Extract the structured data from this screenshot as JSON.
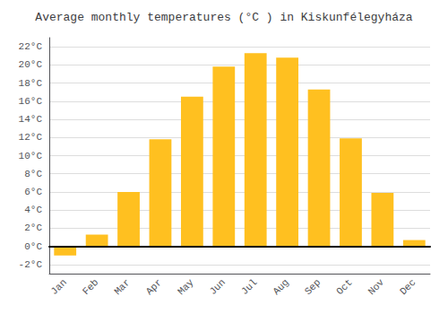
{
  "chart_data": {
    "type": "bar",
    "title": "Average monthly temperatures (°C ) in Kiskunfélegyháza",
    "categories": [
      "Jan",
      "Feb",
      "Mar",
      "Apr",
      "May",
      "Jun",
      "Jul",
      "Aug",
      "Sep",
      "Oct",
      "Nov",
      "Dec"
    ],
    "values": [
      -1.0,
      1.3,
      6.0,
      11.8,
      16.5,
      19.8,
      21.3,
      20.8,
      17.3,
      11.9,
      5.9,
      0.7
    ],
    "color": "#FFC020",
    "ylim": [
      -3,
      23
    ],
    "yticks": [
      {
        "value": -2,
        "label": "-2°C"
      },
      {
        "value": 0,
        "label": "0°C"
      },
      {
        "value": 2,
        "label": "2°C"
      },
      {
        "value": 4,
        "label": "4°C"
      },
      {
        "value": 6,
        "label": "6°C"
      },
      {
        "value": 8,
        "label": "8°C"
      },
      {
        "value": 10,
        "label": "10°C"
      },
      {
        "value": 12,
        "label": "12°C"
      },
      {
        "value": 14,
        "label": "14°C"
      },
      {
        "value": 16,
        "label": "16°C"
      },
      {
        "value": 18,
        "label": "18°C"
      },
      {
        "value": 20,
        "label": "20°C"
      },
      {
        "value": 22,
        "label": "22°C"
      }
    ],
    "grid": true
  }
}
